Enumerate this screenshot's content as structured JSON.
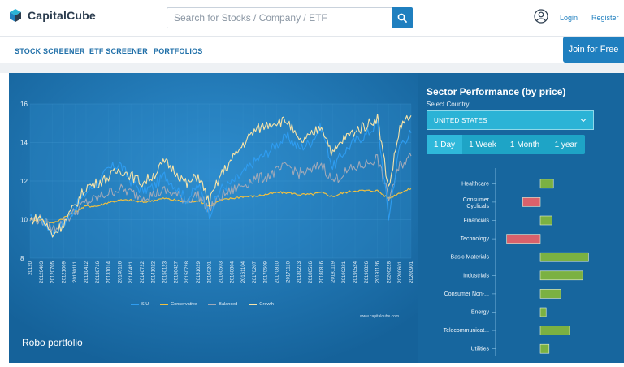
{
  "header": {
    "brand": "CapitalCube",
    "search_placeholder": "Search for Stocks / Company / ETF",
    "login": "Login",
    "register": "Register"
  },
  "nav": {
    "items": [
      "STOCK SCREENER",
      "ETF SCREENER",
      "PORTFOLIOS"
    ],
    "join": "Join for Free"
  },
  "chart_data": {
    "type": "line",
    "title": "Robo portfolio",
    "credit": "www.capitalcube.com",
    "ylim": [
      8,
      16
    ],
    "yticks": [
      "16",
      "14",
      "12",
      "10",
      "8"
    ],
    "xticks": [
      "20120",
      "20120403",
      "20120705",
      "20121009",
      "20130111",
      "20130412",
      "20130716",
      "20131014",
      "20140116",
      "20140421",
      "20140722",
      "20141022",
      "20150123",
      "20150427",
      "20150728",
      "20151029",
      "20160201",
      "20160503",
      "20160804",
      "20161104",
      "20170207",
      "20170509",
      "20170810",
      "20171110",
      "20180213",
      "20180516",
      "20180816",
      "20181119",
      "20190221",
      "20190524",
      "20190826",
      "20191126",
      "20200228",
      "20200601",
      "20200901"
    ],
    "legend_position": "bottom",
    "series": [
      {
        "name": "SIU",
        "color": "#2e9cf0",
        "values": [
          10.0,
          10.1,
          9.3,
          9.8,
          10.6,
          11.4,
          11.9,
          12.6,
          12.9,
          12.0,
          11.5,
          11.7,
          12.3,
          11.7,
          11.0,
          11.8,
          10.3,
          11.6,
          11.9,
          12.4,
          13.0,
          13.4,
          13.9,
          14.3,
          13.7,
          14.0,
          14.8,
          12.7,
          13.5,
          14.1,
          14.4,
          15.0,
          10.1,
          13.9,
          14.5
        ]
      },
      {
        "name": "Conservative",
        "color": "#f0c040",
        "values": [
          10.0,
          10.0,
          9.8,
          10.1,
          10.4,
          10.7,
          10.7,
          10.9,
          11.0,
          11.0,
          10.9,
          11.0,
          11.1,
          11.0,
          10.9,
          11.0,
          10.7,
          11.0,
          11.1,
          11.2,
          11.2,
          11.3,
          11.4,
          11.4,
          11.3,
          11.3,
          11.4,
          11.2,
          11.4,
          11.5,
          11.5,
          11.5,
          11.1,
          11.4,
          11.6
        ]
      },
      {
        "name": "Balanced",
        "color": "#a0a9b8",
        "values": [
          10.0,
          10.0,
          9.5,
          9.9,
          10.4,
          10.9,
          11.1,
          11.4,
          11.6,
          11.4,
          11.2,
          11.3,
          11.5,
          11.3,
          11.0,
          11.3,
          10.5,
          11.2,
          11.5,
          11.8,
          12.1,
          12.2,
          12.5,
          12.8,
          12.4,
          12.5,
          12.9,
          12.0,
          12.4,
          12.7,
          12.9,
          13.2,
          11.1,
          12.8,
          13.3
        ]
      },
      {
        "name": "Growth",
        "color": "#f6e3a8",
        "values": [
          10.0,
          10.1,
          9.2,
          9.8,
          10.7,
          11.7,
          11.9,
          12.2,
          12.6,
          12.3,
          11.9,
          12.3,
          13.0,
          12.5,
          11.8,
          12.3,
          10.9,
          12.3,
          13.1,
          13.9,
          14.6,
          14.9,
          15.1,
          15.1,
          14.0,
          14.3,
          14.9,
          13.4,
          14.2,
          14.6,
          14.9,
          15.3,
          11.6,
          14.8,
          15.4
        ]
      }
    ]
  },
  "sector": {
    "title": "Sector Performance (by price)",
    "country_label": "Select Country",
    "country": "UNITED STATES",
    "periods": [
      "1 Day",
      "1 Week",
      "1 Month",
      "1 year"
    ],
    "active_period": "1 Day",
    "positive_color": "#7bb142",
    "negative_color": "#d9616b",
    "sectors": [
      {
        "name": "Healthcare",
        "value": 0.9
      },
      {
        "name": "Consumer Cyclicals",
        "value": -1.2
      },
      {
        "name": "Financials",
        "value": 0.8
      },
      {
        "name": "Technology",
        "value": -2.3
      },
      {
        "name": "Basic Materials",
        "value": 3.3
      },
      {
        "name": "Industrials",
        "value": 2.9
      },
      {
        "name": "Consumer Non-...",
        "value": 1.4
      },
      {
        "name": "Energy",
        "value": 0.4
      },
      {
        "name": "Telecommunicat...",
        "value": 2.0
      },
      {
        "name": "Utilities",
        "value": 0.6
      }
    ]
  }
}
